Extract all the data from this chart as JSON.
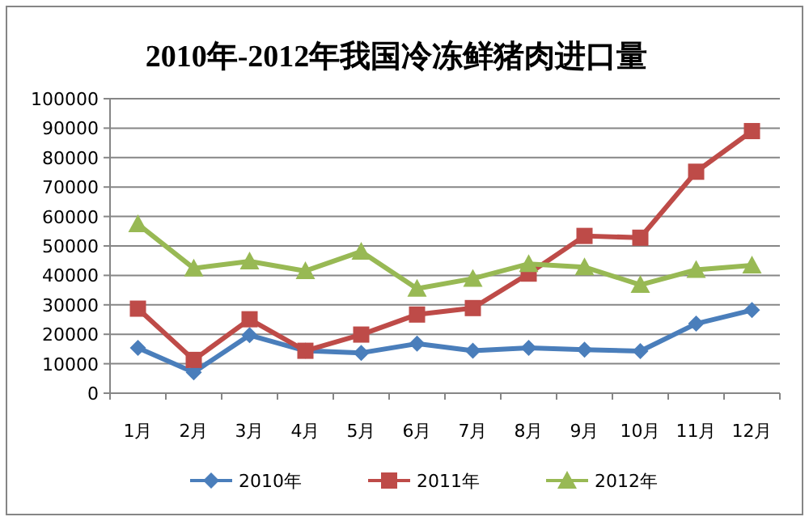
{
  "chart_data": {
    "type": "line",
    "title": "2010年-2012年我国冷冻鲜猪肉进口量",
    "categories": [
      "1月",
      "2月",
      "3月",
      "4月",
      "5月",
      "6月",
      "7月",
      "8月",
      "9月",
      "10月",
      "11月",
      "12月"
    ],
    "series": [
      {
        "name": "2010年",
        "color": "#4a7ebb",
        "marker": "diamond",
        "values": [
          15400,
          7100,
          19700,
          14400,
          13700,
          16800,
          14400,
          15400,
          14800,
          14300,
          23600,
          28200
        ]
      },
      {
        "name": "2011年",
        "color": "#be4b48",
        "marker": "square",
        "values": [
          28700,
          11300,
          25100,
          14400,
          19900,
          26700,
          28900,
          40600,
          53400,
          52800,
          75200,
          89000
        ]
      },
      {
        "name": "2012年",
        "color": "#98b954",
        "marker": "triangle",
        "values": [
          57400,
          42400,
          44800,
          41500,
          48100,
          35500,
          38900,
          43900,
          42800,
          36800,
          41900,
          43400
        ]
      }
    ],
    "ylim": [
      0,
      100000
    ],
    "yticks": [
      0,
      10000,
      20000,
      30000,
      40000,
      50000,
      60000,
      70000,
      80000,
      90000,
      100000
    ],
    "grid": "y",
    "legend": "bottom",
    "line_style": "solid"
  }
}
